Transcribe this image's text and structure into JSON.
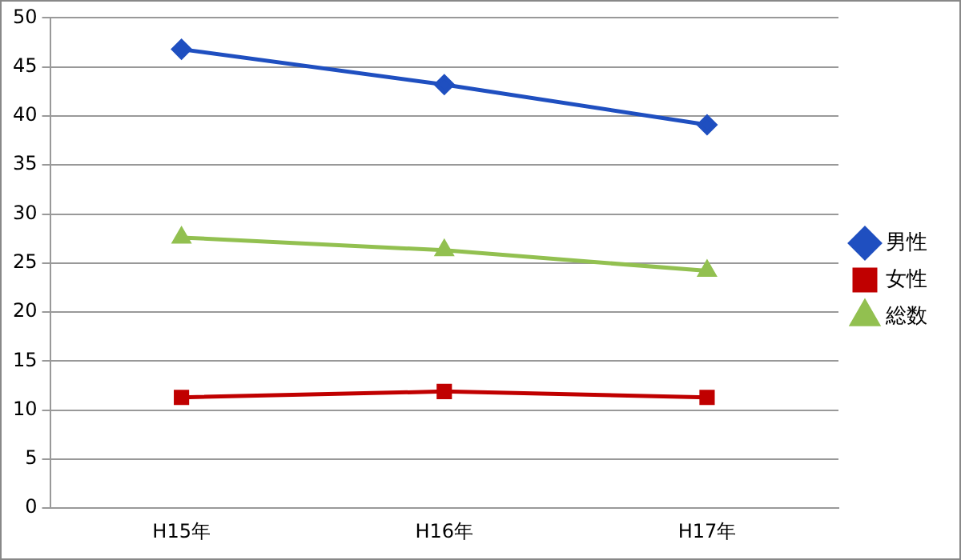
{
  "chart_data": {
    "type": "line",
    "categories": [
      "H15年",
      "H16年",
      "H17年"
    ],
    "series": [
      {
        "name": "男性",
        "color": "#1f4fc0",
        "marker": "diamond",
        "values": [
          46.8,
          43.2,
          39.1
        ]
      },
      {
        "name": "女性",
        "color": "#c00000",
        "marker": "square",
        "values": [
          11.3,
          11.9,
          11.3
        ]
      },
      {
        "name": "総数",
        "color": "#92c050",
        "marker": "triangle",
        "values": [
          27.6,
          26.3,
          24.2
        ]
      }
    ],
    "ylim": [
      0,
      50
    ],
    "yticks": [
      0,
      5,
      10,
      15,
      20,
      25,
      30,
      35,
      40,
      45,
      50
    ],
    "grid": "y",
    "legend": "right"
  }
}
